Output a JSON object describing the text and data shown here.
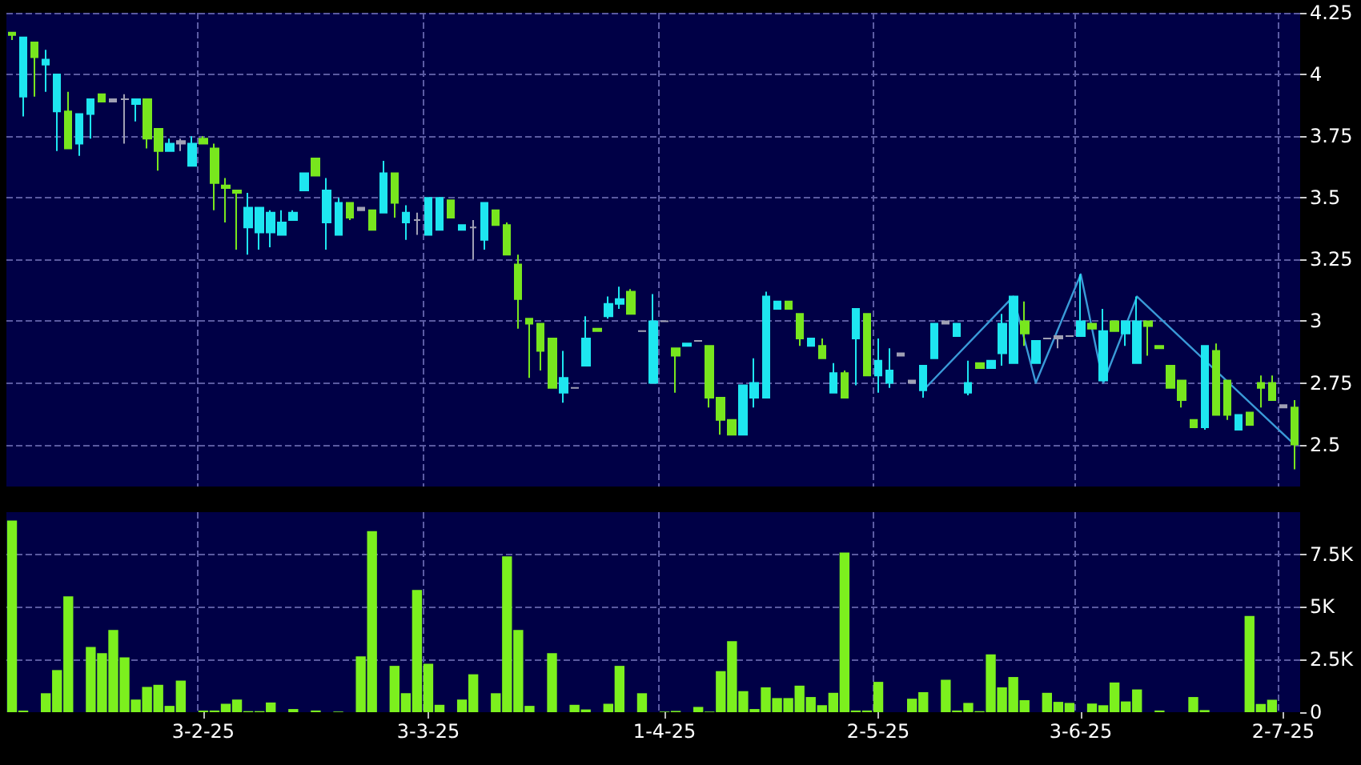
{
  "chart_data": [
    {
      "type": "candlestick",
      "categories": [
        null,
        null,
        null,
        null,
        null,
        null,
        null,
        null,
        null,
        null,
        null,
        null,
        null,
        null,
        null,
        null,
        null,
        null,
        null,
        null,
        null,
        null,
        null,
        null,
        null,
        null,
        null,
        null,
        null,
        null,
        null,
        null,
        null,
        null,
        null,
        null,
        null,
        null,
        null,
        null,
        null,
        null,
        null,
        null,
        null,
        null,
        null,
        null,
        null,
        null,
        null,
        null,
        null,
        null,
        null,
        null,
        null,
        null,
        null,
        null,
        null,
        null,
        null,
        null,
        null,
        null,
        null,
        null,
        null,
        null,
        null,
        null,
        null,
        null,
        null,
        null,
        null,
        null,
        null,
        null,
        null,
        null,
        null,
        null,
        null,
        null,
        null,
        null,
        null,
        null,
        null,
        null,
        null,
        null,
        null,
        null,
        null,
        null,
        null,
        null,
        null,
        null,
        null,
        null,
        null,
        null,
        null,
        null,
        null,
        null,
        null,
        null,
        null,
        null,
        null
      ],
      "ohlc": [
        [
          4.17,
          4.17,
          4.14,
          4.16
        ],
        [
          3.91,
          4.15,
          3.83,
          4.15
        ],
        [
          4.13,
          4.13,
          3.91,
          4.07
        ],
        [
          4.04,
          4.1,
          3.93,
          4.06
        ],
        [
          3.85,
          4.0,
          3.69,
          4.0
        ],
        [
          3.85,
          3.93,
          3.7,
          3.7
        ],
        [
          3.72,
          3.84,
          3.67,
          3.84
        ],
        [
          3.84,
          3.9,
          3.74,
          3.9
        ],
        [
          3.92,
          3.92,
          3.89,
          3.89
        ],
        [
          3.89,
          3.9,
          3.89,
          3.9
        ],
        [
          3.9,
          3.92,
          3.72,
          3.9
        ],
        [
          3.88,
          3.9,
          3.81,
          3.9
        ],
        [
          3.9,
          3.9,
          3.7,
          3.74
        ],
        [
          3.78,
          3.78,
          3.61,
          3.69
        ],
        [
          3.69,
          3.74,
          3.69,
          3.72
        ],
        [
          3.72,
          3.74,
          3.69,
          3.73
        ],
        [
          3.63,
          3.75,
          3.63,
          3.72
        ],
        [
          3.74,
          3.75,
          3.72,
          3.72
        ],
        [
          3.7,
          3.72,
          3.45,
          3.56
        ],
        [
          3.55,
          3.58,
          3.4,
          3.54
        ],
        [
          3.53,
          3.53,
          3.29,
          3.52
        ],
        [
          3.38,
          3.52,
          3.27,
          3.46
        ],
        [
          3.36,
          3.46,
          3.29,
          3.46
        ],
        [
          3.36,
          3.45,
          3.3,
          3.44
        ],
        [
          3.35,
          3.45,
          3.35,
          3.4
        ],
        [
          3.41,
          3.45,
          3.41,
          3.44
        ],
        [
          3.53,
          3.6,
          3.53,
          3.6
        ],
        [
          3.66,
          3.66,
          3.59,
          3.59
        ],
        [
          3.4,
          3.58,
          3.29,
          3.53
        ],
        [
          3.35,
          3.5,
          3.35,
          3.48
        ],
        [
          3.48,
          3.48,
          3.41,
          3.42
        ],
        [
          3.45,
          3.46,
          3.45,
          3.46
        ],
        [
          3.45,
          3.45,
          3.37,
          3.37
        ],
        [
          3.44,
          3.65,
          3.44,
          3.6
        ],
        [
          3.6,
          3.6,
          3.42,
          3.48
        ],
        [
          3.4,
          3.47,
          3.33,
          3.44
        ],
        [
          3.41,
          3.44,
          3.35,
          3.41
        ],
        [
          3.35,
          3.5,
          3.35,
          3.5
        ],
        [
          3.37,
          3.5,
          3.37,
          3.5
        ],
        [
          3.49,
          3.49,
          3.42,
          3.42
        ],
        [
          3.37,
          3.39,
          3.37,
          3.39
        ],
        [
          3.38,
          3.41,
          3.25,
          3.38
        ],
        [
          3.33,
          3.48,
          3.29,
          3.48
        ],
        [
          3.45,
          3.45,
          3.39,
          3.39
        ],
        [
          3.39,
          3.4,
          3.27,
          3.27
        ],
        [
          3.23,
          3.27,
          2.97,
          3.09
        ],
        [
          3.01,
          3.01,
          2.77,
          2.99
        ],
        [
          2.99,
          2.99,
          2.8,
          2.88
        ],
        [
          2.93,
          2.93,
          2.73,
          2.73
        ],
        [
          2.71,
          2.88,
          2.67,
          2.77
        ],
        [
          2.73,
          2.73,
          2.73,
          2.73
        ],
        [
          2.82,
          3.02,
          2.82,
          2.93
        ],
        [
          2.97,
          2.97,
          2.96,
          2.96
        ],
        [
          3.02,
          3.1,
          3.01,
          3.07
        ],
        [
          3.07,
          3.14,
          3.05,
          3.09
        ],
        [
          3.12,
          3.13,
          3.03,
          3.03
        ],
        [
          2.96,
          2.96,
          2.96,
          2.96
        ],
        [
          2.75,
          3.11,
          2.75,
          3.0
        ],
        [
          3.0,
          3.0,
          3.0,
          3.0
        ],
        [
          2.89,
          2.89,
          2.71,
          2.86
        ],
        [
          2.9,
          2.91,
          2.9,
          2.91
        ],
        [
          2.92,
          2.92,
          2.92,
          2.92
        ],
        [
          2.9,
          2.9,
          2.65,
          2.69
        ],
        [
          2.69,
          2.69,
          2.54,
          2.6
        ],
        [
          2.6,
          2.6,
          2.54,
          2.54
        ],
        [
          2.54,
          2.74,
          2.54,
          2.74
        ],
        [
          2.69,
          2.85,
          2.65,
          2.75
        ],
        [
          2.69,
          3.12,
          2.69,
          3.1
        ],
        [
          3.05,
          3.08,
          3.05,
          3.08
        ],
        [
          3.08,
          3.08,
          3.05,
          3.05
        ],
        [
          3.03,
          3.03,
          2.9,
          2.93
        ],
        [
          2.9,
          2.93,
          2.9,
          2.93
        ],
        [
          2.9,
          2.93,
          2.85,
          2.85
        ],
        [
          2.71,
          2.83,
          2.71,
          2.79
        ],
        [
          2.79,
          2.8,
          2.69,
          2.69
        ],
        [
          2.93,
          3.05,
          2.74,
          3.05
        ],
        [
          3.03,
          3.03,
          2.78,
          2.78
        ],
        [
          2.78,
          2.93,
          2.71,
          2.84
        ],
        [
          2.75,
          2.89,
          2.73,
          2.8
        ],
        [
          2.86,
          2.87,
          2.86,
          2.87
        ],
        [
          2.75,
          2.76,
          2.75,
          2.76
        ],
        [
          2.72,
          2.82,
          2.69,
          2.82
        ],
        [
          2.85,
          2.99,
          2.85,
          2.99
        ],
        [
          2.99,
          3.0,
          2.99,
          3.0
        ],
        [
          2.94,
          2.99,
          2.94,
          2.99
        ],
        [
          2.71,
          2.84,
          2.7,
          2.75
        ],
        [
          2.83,
          2.83,
          2.81,
          2.81
        ],
        [
          2.81,
          2.84,
          2.81,
          2.84
        ],
        [
          2.87,
          3.03,
          2.82,
          2.99
        ],
        [
          2.83,
          3.1,
          2.83,
          3.1
        ],
        [
          3.0,
          3.08,
          2.9,
          2.95
        ],
        [
          2.83,
          2.92,
          2.83,
          2.92
        ],
        [
          2.93,
          2.93,
          2.93,
          2.93
        ],
        [
          2.93,
          2.94,
          2.89,
          2.94
        ],
        [
          2.94,
          2.94,
          2.94,
          2.94
        ],
        [
          2.94,
          3.19,
          2.94,
          3.0
        ],
        [
          2.99,
          2.99,
          2.97,
          2.97
        ],
        [
          2.76,
          3.05,
          2.76,
          2.96
        ],
        [
          3.0,
          3.0,
          2.96,
          2.96
        ],
        [
          2.95,
          3.0,
          2.9,
          3.0
        ],
        [
          2.83,
          3.1,
          2.83,
          3.0
        ],
        [
          3.0,
          3.0,
          2.86,
          2.98
        ],
        [
          2.9,
          2.9,
          2.89,
          2.89
        ],
        [
          2.82,
          2.82,
          2.73,
          2.73
        ],
        [
          2.76,
          2.76,
          2.65,
          2.68
        ],
        [
          2.6,
          2.6,
          2.57,
          2.57
        ],
        [
          2.57,
          2.9,
          2.56,
          2.9
        ],
        [
          2.88,
          2.91,
          2.62,
          2.62
        ],
        [
          2.76,
          2.76,
          2.6,
          2.62
        ],
        [
          2.56,
          2.62,
          2.56,
          2.62
        ],
        [
          2.63,
          2.63,
          2.58,
          2.58
        ],
        [
          2.75,
          2.78,
          2.65,
          2.73
        ],
        [
          2.75,
          2.78,
          2.68,
          2.68
        ],
        [
          2.65,
          2.66,
          2.65,
          2.66
        ],
        [
          2.65,
          2.68,
          2.4,
          2.5
        ]
      ],
      "colors": [
        "#78e61e",
        "#1ee6f0",
        "#78e61e",
        "#1ee6f0",
        "#1ee6f0",
        "#78e61e",
        "#1ee6f0",
        "#1ee6f0",
        "#78e61e",
        "#a0a0b4",
        "#a0a0b4",
        "#1ee6f0",
        "#78e61e",
        "#78e61e",
        "#1ee6f0",
        "#a0a0b4",
        "#1ee6f0",
        "#78e61e",
        "#78e61e",
        "#78e61e",
        "#78e61e",
        "#1ee6f0",
        "#1ee6f0",
        "#1ee6f0",
        "#1ee6f0",
        "#1ee6f0",
        "#1ee6f0",
        "#78e61e",
        "#1ee6f0",
        "#1ee6f0",
        "#78e61e",
        "#a0a0b4",
        "#78e61e",
        "#1ee6f0",
        "#78e61e",
        "#1ee6f0",
        "#a0a0b4",
        "#1ee6f0",
        "#1ee6f0",
        "#78e61e",
        "#1ee6f0",
        "#a0a0b4",
        "#1ee6f0",
        "#78e61e",
        "#78e61e",
        "#78e61e",
        "#78e61e",
        "#78e61e",
        "#78e61e",
        "#1ee6f0",
        "#a0a0b4",
        "#1ee6f0",
        "#78e61e",
        "#1ee6f0",
        "#1ee6f0",
        "#78e61e",
        "#a0a0b4",
        "#1ee6f0",
        "#a0a0b4",
        "#78e61e",
        "#1ee6f0",
        "#a0a0b4",
        "#78e61e",
        "#78e61e",
        "#78e61e",
        "#1ee6f0",
        "#1ee6f0",
        "#1ee6f0",
        "#1ee6f0",
        "#78e61e",
        "#78e61e",
        "#1ee6f0",
        "#78e61e",
        "#1ee6f0",
        "#78e61e",
        "#1ee6f0",
        "#78e61e",
        "#1ee6f0",
        "#1ee6f0",
        "#a0a0b4",
        "#a0a0b4",
        "#1ee6f0",
        "#1ee6f0",
        "#a0a0b4",
        "#1ee6f0",
        "#1ee6f0",
        "#78e61e",
        "#1ee6f0",
        "#1ee6f0",
        "#1ee6f0",
        "#78e61e",
        "#1ee6f0",
        "#a0a0b4",
        "#a0a0b4",
        "#a0a0b4",
        "#1ee6f0",
        "#78e61e",
        "#1ee6f0",
        "#78e61e",
        "#1ee6f0",
        "#1ee6f0",
        "#78e61e",
        "#78e61e",
        "#78e61e",
        "#78e61e",
        "#78e61e",
        "#1ee6f0",
        "#78e61e",
        "#78e61e",
        "#1ee6f0",
        "#78e61e",
        "#78e61e",
        "#78e61e",
        "#a0a0b4",
        "#78e61e"
      ],
      "series": [
        {
          "type": "line",
          "color": "#3a9ad8",
          "line_style": "solid",
          "values": [
            null,
            null,
            null,
            null,
            null,
            null,
            null,
            null,
            null,
            null,
            null,
            null,
            null,
            null,
            null,
            null,
            null,
            null,
            null,
            null,
            null,
            null,
            null,
            null,
            null,
            null,
            null,
            null,
            null,
            null,
            null,
            null,
            null,
            null,
            null,
            null,
            null,
            null,
            null,
            null,
            null,
            null,
            null,
            null,
            null,
            null,
            null,
            null,
            null,
            null,
            null,
            null,
            null,
            null,
            null,
            null,
            null,
            null,
            null,
            null,
            null,
            null,
            null,
            null,
            null,
            null,
            null,
            null,
            null,
            null,
            null,
            null,
            null,
            null,
            null,
            null,
            null,
            null,
            null,
            null,
            null,
            2.72,
            null,
            null,
            null,
            null,
            null,
            null,
            null,
            3.1,
            null,
            2.75,
            null,
            null,
            null,
            3.19,
            null,
            2.75,
            null,
            null,
            3.1,
            null,
            null,
            null,
            null,
            null,
            null,
            null,
            null,
            null,
            null,
            null,
            null,
            null,
            2.5
          ]
        }
      ],
      "ylim": [
        2.33,
        4.25
      ],
      "yticks": [
        2.5,
        2.75,
        3,
        3.25,
        3.5,
        3.75,
        4,
        4.25
      ],
      "grid": true,
      "tick_labels": "y"
    },
    {
      "type": "bar",
      "categories": [
        null,
        null,
        null,
        null,
        null,
        null,
        null,
        null,
        null,
        null,
        null,
        null,
        null,
        null,
        null,
        null,
        null,
        "3-2-25",
        null,
        null,
        null,
        null,
        null,
        null,
        null,
        null,
        null,
        null,
        null,
        null,
        null,
        null,
        null,
        null,
        null,
        null,
        null,
        "3-3-25",
        null,
        null,
        null,
        null,
        null,
        null,
        null,
        null,
        null,
        null,
        null,
        null,
        null,
        null,
        null,
        null,
        null,
        null,
        null,
        null,
        "1-4-25",
        null,
        null,
        null,
        null,
        null,
        null,
        null,
        null,
        null,
        null,
        null,
        null,
        null,
        null,
        null,
        null,
        null,
        null,
        "2-5-25",
        null,
        null,
        null,
        null,
        null,
        null,
        null,
        null,
        null,
        null,
        null,
        null,
        null,
        null,
        null,
        null,
        null,
        "3-6-25",
        null,
        null,
        null,
        null,
        null,
        null,
        null,
        null,
        null,
        null,
        null,
        null,
        null,
        null,
        null,
        null,
        null,
        "2-7-25",
        null
      ],
      "values": [
        9100,
        80,
        0,
        900,
        2000,
        5500,
        0,
        3100,
        2800,
        3900,
        2600,
        600,
        1200,
        1300,
        300,
        1500,
        0,
        80,
        80,
        400,
        600,
        50,
        50,
        460,
        0,
        150,
        0,
        80,
        0,
        30,
        0,
        2650,
        8600,
        0,
        2200,
        900,
        5800,
        2300,
        350,
        0,
        600,
        1800,
        0,
        900,
        7400,
        3900,
        300,
        0,
        2800,
        0,
        350,
        130,
        0,
        400,
        2200,
        0,
        900,
        0,
        30,
        60,
        0,
        250,
        30,
        1950,
        3370,
        1000,
        150,
        1180,
        670,
        670,
        1260,
        720,
        330,
        920,
        7580,
        80,
        80,
        1440,
        0,
        0,
        640,
        950,
        0,
        1540,
        80,
        440,
        50,
        2750,
        1180,
        1670,
        570,
        0,
        920,
        490,
        440,
        0,
        410,
        330,
        1410,
        510,
        1080,
        0,
        80,
        0,
        0,
        720,
        100,
        0,
        0,
        0,
        4570,
        390,
        590,
        0,
        0
      ],
      "color": "#7cf01e",
      "ylim": [
        0,
        9500
      ],
      "yticks": [
        0,
        {
          "value": 2500,
          "label": "2.5K"
        },
        {
          "value": 5000,
          "label": "5K"
        },
        {
          "value": 7500,
          "label": "7.5K"
        }
      ],
      "grid": true
    }
  ]
}
